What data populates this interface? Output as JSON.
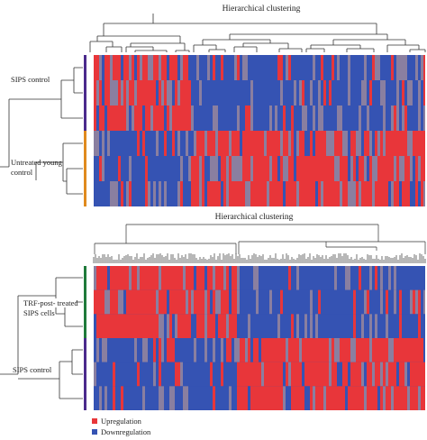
{
  "panel_a": {
    "title": "Hierarchical clustering",
    "groups": [
      {
        "label": "SIPS control",
        "color": "#4b2a8c",
        "rows": 3
      },
      {
        "label_line1": "Untreated young",
        "label_line2": "control",
        "color": "#e08a1e",
        "rows": 3
      }
    ]
  },
  "panel_b": {
    "title": "Hierarchical clustering",
    "groups": [
      {
        "label_line1": "TRF-post- treated",
        "label_line2": "SIPS cells",
        "color": "#1f7a3a",
        "rows": 3
      },
      {
        "label": "SIPS control",
        "color": "#4b2a8c",
        "rows": 3
      }
    ]
  },
  "legend": [
    {
      "label": "Upregulation",
      "color": "#e8363a"
    },
    {
      "label": "Downregulation",
      "color": "#3553b3"
    }
  ],
  "colors": {
    "up": "#e8363a",
    "down": "#3553b3",
    "mid": "#8a7fa0"
  }
}
